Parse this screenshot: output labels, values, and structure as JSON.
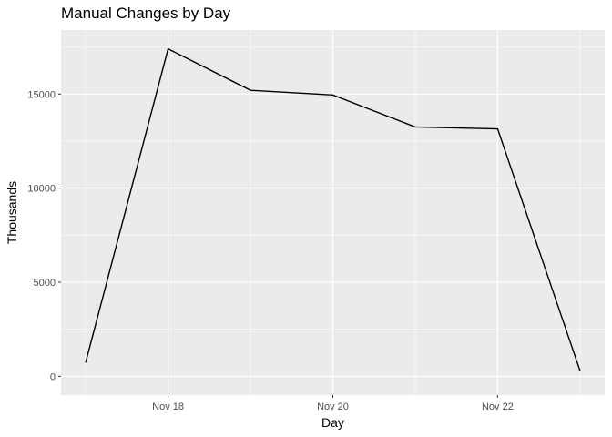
{
  "chart_data": {
    "type": "line",
    "title": "Manual Changes by Day",
    "xlabel": "Day",
    "ylabel": "Thousands",
    "x": [
      "2023-11-17",
      "2023-11-18",
      "2023-11-19",
      "2023-11-20",
      "2023-11-21",
      "2023-11-22",
      "2023-11-23"
    ],
    "series": [
      {
        "values": [
          750,
          17400,
          15200,
          14950,
          13250,
          13150,
          300
        ]
      }
    ],
    "x_ticks": [
      {
        "value": "2023-11-18",
        "label": "Nov 18"
      },
      {
        "value": "2023-11-20",
        "label": "Nov 20"
      },
      {
        "value": "2023-11-22",
        "label": "Nov 22"
      }
    ],
    "y_ticks": [
      0,
      5000,
      10000,
      15000
    ],
    "y_tick_labels": [
      "0",
      "5000",
      "10000",
      "15000"
    ],
    "ylim": [
      -1000,
      18400
    ],
    "xlim": [
      "2023-11-16T16:48",
      "2023-11-23T07:12"
    ],
    "grid": true,
    "legend": "none",
    "colors": {
      "panel": "#ebebeb",
      "grid": "#ffffff",
      "line": "#000000",
      "tick_text": "#4d4d4d"
    }
  }
}
